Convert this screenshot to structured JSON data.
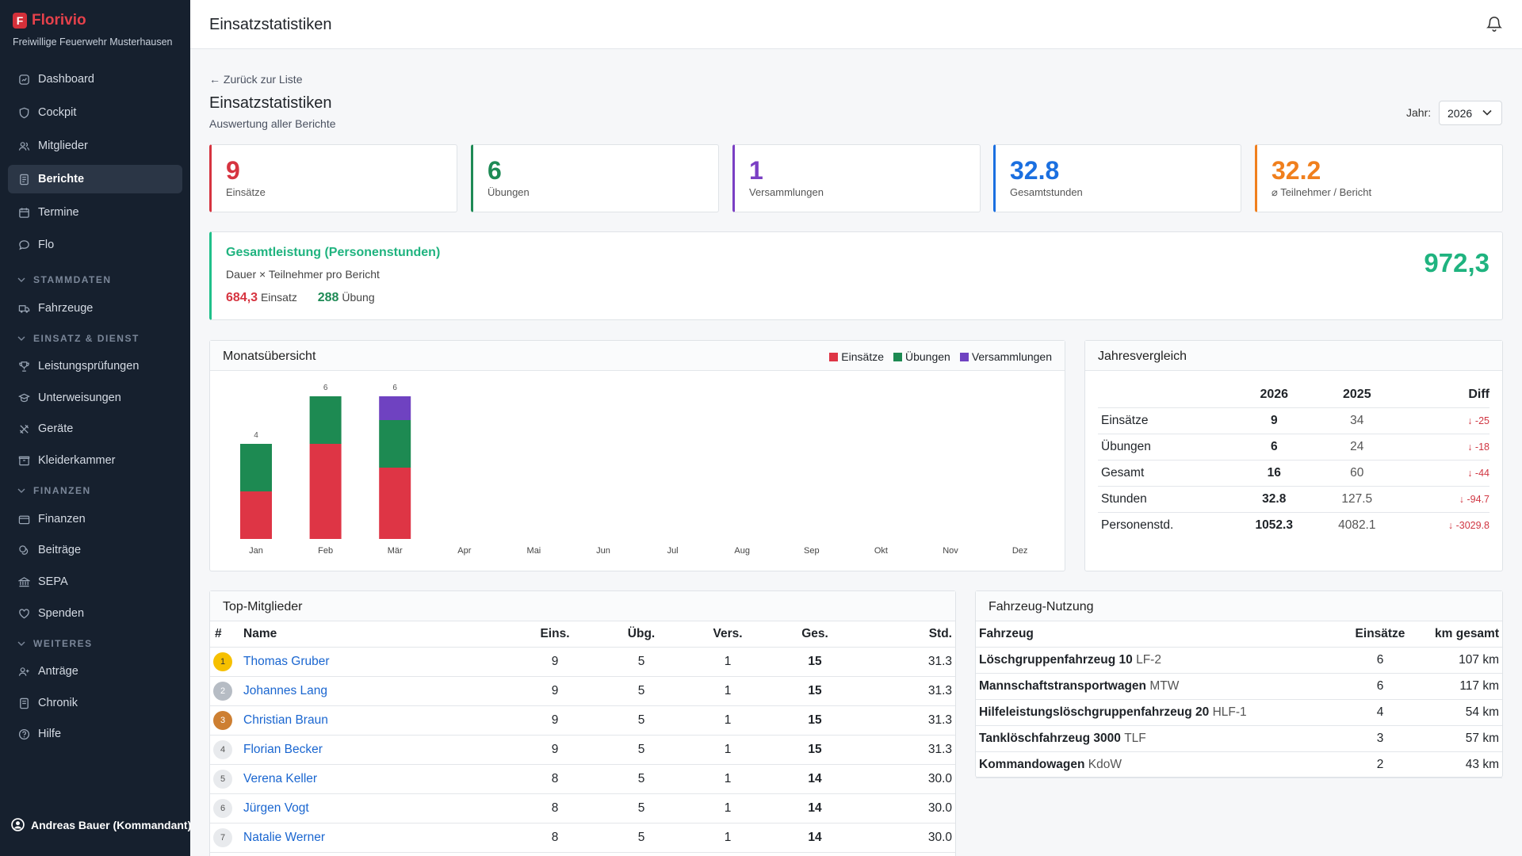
{
  "app": {
    "name": "Florivio",
    "org": "Freiwillige Feuerwehr Musterhausen"
  },
  "sidebar": {
    "items": [
      {
        "label": "Dashboard",
        "icon": "dashboard-icon"
      },
      {
        "label": "Cockpit",
        "icon": "shield-icon"
      },
      {
        "label": "Mitglieder",
        "icon": "users-icon"
      },
      {
        "label": "Berichte",
        "icon": "document-icon",
        "active": true
      },
      {
        "label": "Termine",
        "icon": "calendar-icon"
      },
      {
        "label": "Flo",
        "icon": "chat-icon"
      }
    ],
    "sections": [
      {
        "label": "STAMMDATEN",
        "items": [
          {
            "label": "Fahrzeuge",
            "icon": "truck-icon"
          }
        ]
      },
      {
        "label": "EINSATZ & DIENST",
        "items": [
          {
            "label": "Leistungsprüfungen",
            "icon": "trophy-icon"
          },
          {
            "label": "Unterweisungen",
            "icon": "teaching-icon"
          },
          {
            "label": "Geräte",
            "icon": "tools-icon"
          },
          {
            "label": "Kleiderkammer",
            "icon": "box-icon"
          }
        ]
      },
      {
        "label": "FINANZEN",
        "items": [
          {
            "label": "Finanzen",
            "icon": "wallet-icon"
          },
          {
            "label": "Beiträge",
            "icon": "coins-icon"
          },
          {
            "label": "SEPA",
            "icon": "bank-icon"
          },
          {
            "label": "Spenden",
            "icon": "heart-icon"
          }
        ]
      },
      {
        "label": "WEITERES",
        "items": [
          {
            "label": "Anträge",
            "icon": "user-plus-icon"
          },
          {
            "label": "Chronik",
            "icon": "book-icon"
          },
          {
            "label": "Hilfe",
            "icon": "help-icon"
          }
        ]
      }
    ],
    "user": "Andreas Bauer (Kommandant)"
  },
  "topbar": {
    "title": "Einsatzstatistiken"
  },
  "page": {
    "back": "← Zurück zur Liste",
    "title": "Einsatzstatistiken",
    "subtitle": "Auswertung aller Berichte",
    "year_label": "Jahr:",
    "year": "2026"
  },
  "stats": [
    {
      "value": "9",
      "label": "Einsätze",
      "color": "#d63440"
    },
    {
      "value": "6",
      "label": "Übungen",
      "color": "#1e8a55"
    },
    {
      "value": "1",
      "label": "Versammlungen",
      "color": "#7a3fc4"
    },
    {
      "value": "32.8",
      "label": "Gesamtstunden",
      "color": "#1a6fe0"
    },
    {
      "value": "32.2",
      "label": "⌀ Teilnehmer / Bericht",
      "color": "#f07f1d"
    }
  ],
  "performance": {
    "title": "Gesamtleistung (Personenstunden)",
    "subtitle": "Dauer × Teilnehmer pro Bericht",
    "einsatz_value": "684,3",
    "einsatz_label": "Einsatz",
    "uebung_value": "288",
    "uebung_label": "Übung",
    "total": "972,3"
  },
  "monthly": {
    "title": "Monatsübersicht",
    "legend": [
      {
        "name": "Einsätze",
        "color": "#de3545"
      },
      {
        "name": "Übungen",
        "color": "#1d8a52"
      },
      {
        "name": "Versammlungen",
        "color": "#6f42c1"
      }
    ]
  },
  "chart_data": {
    "type": "bar",
    "stacked": true,
    "categories": [
      "Jan",
      "Feb",
      "Mär",
      "Apr",
      "Mai",
      "Jun",
      "Jul",
      "Aug",
      "Sep",
      "Okt",
      "Nov",
      "Dez"
    ],
    "series": [
      {
        "name": "Einsätze",
        "values": [
          2,
          4,
          3,
          0,
          0,
          0,
          0,
          0,
          0,
          0,
          0,
          0
        ]
      },
      {
        "name": "Übungen",
        "values": [
          2,
          2,
          2,
          0,
          0,
          0,
          0,
          0,
          0,
          0,
          0,
          0
        ]
      },
      {
        "name": "Versammlungen",
        "values": [
          0,
          0,
          1,
          0,
          0,
          0,
          0,
          0,
          0,
          0,
          0,
          0
        ]
      }
    ],
    "totals": [
      4,
      6,
      6,
      null,
      null,
      null,
      null,
      null,
      null,
      null,
      null,
      null
    ],
    "ylim": [
      0,
      6
    ],
    "grid": false,
    "legend_position": "top-right"
  },
  "comparison": {
    "title": "Jahresvergleich",
    "headers": [
      "",
      "2026",
      "2025",
      "Diff"
    ],
    "rows": [
      {
        "label": "Einsätze",
        "cur": "9",
        "prev": "34",
        "diff": "↓ -25"
      },
      {
        "label": "Übungen",
        "cur": "6",
        "prev": "24",
        "diff": "↓ -18"
      },
      {
        "label": "Gesamt",
        "cur": "16",
        "prev": "60",
        "diff": "↓ -44"
      },
      {
        "label": "Stunden",
        "cur": "32.8",
        "prev": "127.5",
        "diff": "↓ -94.7"
      },
      {
        "label": "Personenstd.",
        "cur": "1052.3",
        "prev": "4082.1",
        "diff": "↓ -3029.8"
      }
    ]
  },
  "top_members": {
    "title": "Top-Mitglieder",
    "headers": [
      "#",
      "Name",
      "Eins.",
      "Übg.",
      "Vers.",
      "Ges.",
      "Std."
    ],
    "rank_colors": [
      "#f6c000",
      "#b6bcc4",
      "#cd7f32"
    ],
    "rows": [
      {
        "rank": "1",
        "name": "Thomas Gruber",
        "eins": "9",
        "ubg": "5",
        "vers": "1",
        "ges": "15",
        "std": "31.3"
      },
      {
        "rank": "2",
        "name": "Johannes Lang",
        "eins": "9",
        "ubg": "5",
        "vers": "1",
        "ges": "15",
        "std": "31.3"
      },
      {
        "rank": "3",
        "name": "Christian Braun",
        "eins": "9",
        "ubg": "5",
        "vers": "1",
        "ges": "15",
        "std": "31.3"
      },
      {
        "rank": "4",
        "name": "Florian Becker",
        "eins": "9",
        "ubg": "5",
        "vers": "1",
        "ges": "15",
        "std": "31.3"
      },
      {
        "rank": "5",
        "name": "Verena Keller",
        "eins": "8",
        "ubg": "5",
        "vers": "1",
        "ges": "14",
        "std": "30.0"
      },
      {
        "rank": "6",
        "name": "Jürgen Vogt",
        "eins": "8",
        "ubg": "5",
        "vers": "1",
        "ges": "14",
        "std": "30.0"
      },
      {
        "rank": "7",
        "name": "Natalie Werner",
        "eins": "8",
        "ubg": "5",
        "vers": "1",
        "ges": "14",
        "std": "30.0"
      }
    ]
  },
  "vehicles": {
    "title": "Fahrzeug-Nutzung",
    "headers": [
      "Fahrzeug",
      "Einsätze",
      "km gesamt"
    ],
    "rows": [
      {
        "name": "Löschgruppenfahrzeug 10",
        "abbr": "LF-2",
        "einsaetze": "6",
        "km": "107 km"
      },
      {
        "name": "Mannschaftstransportwagen",
        "abbr": "MTW",
        "einsaetze": "6",
        "km": "117 km"
      },
      {
        "name": "Hilfeleistungslöschgruppenfahrzeug 20",
        "abbr": "HLF-1",
        "einsaetze": "4",
        "km": "54 km"
      },
      {
        "name": "Tanklöschfahrzeug 3000",
        "abbr": "TLF",
        "einsaetze": "3",
        "km": "57 km"
      },
      {
        "name": "Kommandowagen",
        "abbr": "KdoW",
        "einsaetze": "2",
        "km": "43 km"
      }
    ]
  }
}
